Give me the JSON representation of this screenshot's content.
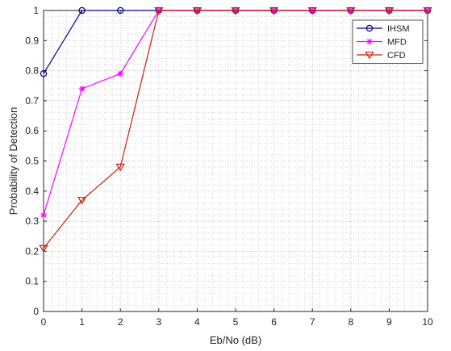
{
  "chart_data": {
    "type": "line",
    "title": "",
    "xlabel": "Eb/No (dB)",
    "ylabel": "Probability of Detection",
    "xlim": [
      0,
      10
    ],
    "ylim": [
      0,
      1
    ],
    "x_ticks": [
      "0",
      "1",
      "2",
      "3",
      "4",
      "5",
      "6",
      "7",
      "8",
      "9",
      "10"
    ],
    "y_ticks": [
      "0",
      "0.1",
      "0.2",
      "0.3",
      "0.4",
      "0.5",
      "0.6",
      "0.7",
      "0.8",
      "0.9",
      "1"
    ],
    "grid": "on (major and minor, dotted)",
    "legend_position": "top-right",
    "x": [
      0,
      1,
      2,
      3,
      4,
      5,
      6,
      7,
      8,
      9,
      10
    ],
    "series": [
      {
        "name": "IHSM",
        "color": "#00008b",
        "marker": "circle",
        "values": [
          0.79,
          1,
          1,
          1,
          1,
          1,
          1,
          1,
          1,
          1,
          1
        ]
      },
      {
        "name": "MFD",
        "color": "#ff00ff",
        "marker": "asterisk",
        "values": [
          0.32,
          0.74,
          0.79,
          1,
          1,
          1,
          1,
          1,
          1,
          1,
          1
        ]
      },
      {
        "name": "CFD",
        "color": "#c81e0a",
        "marker": "triangle-down",
        "values": [
          0.21,
          0.37,
          0.48,
          1,
          1,
          1,
          1,
          1,
          1,
          1,
          1
        ]
      }
    ]
  }
}
